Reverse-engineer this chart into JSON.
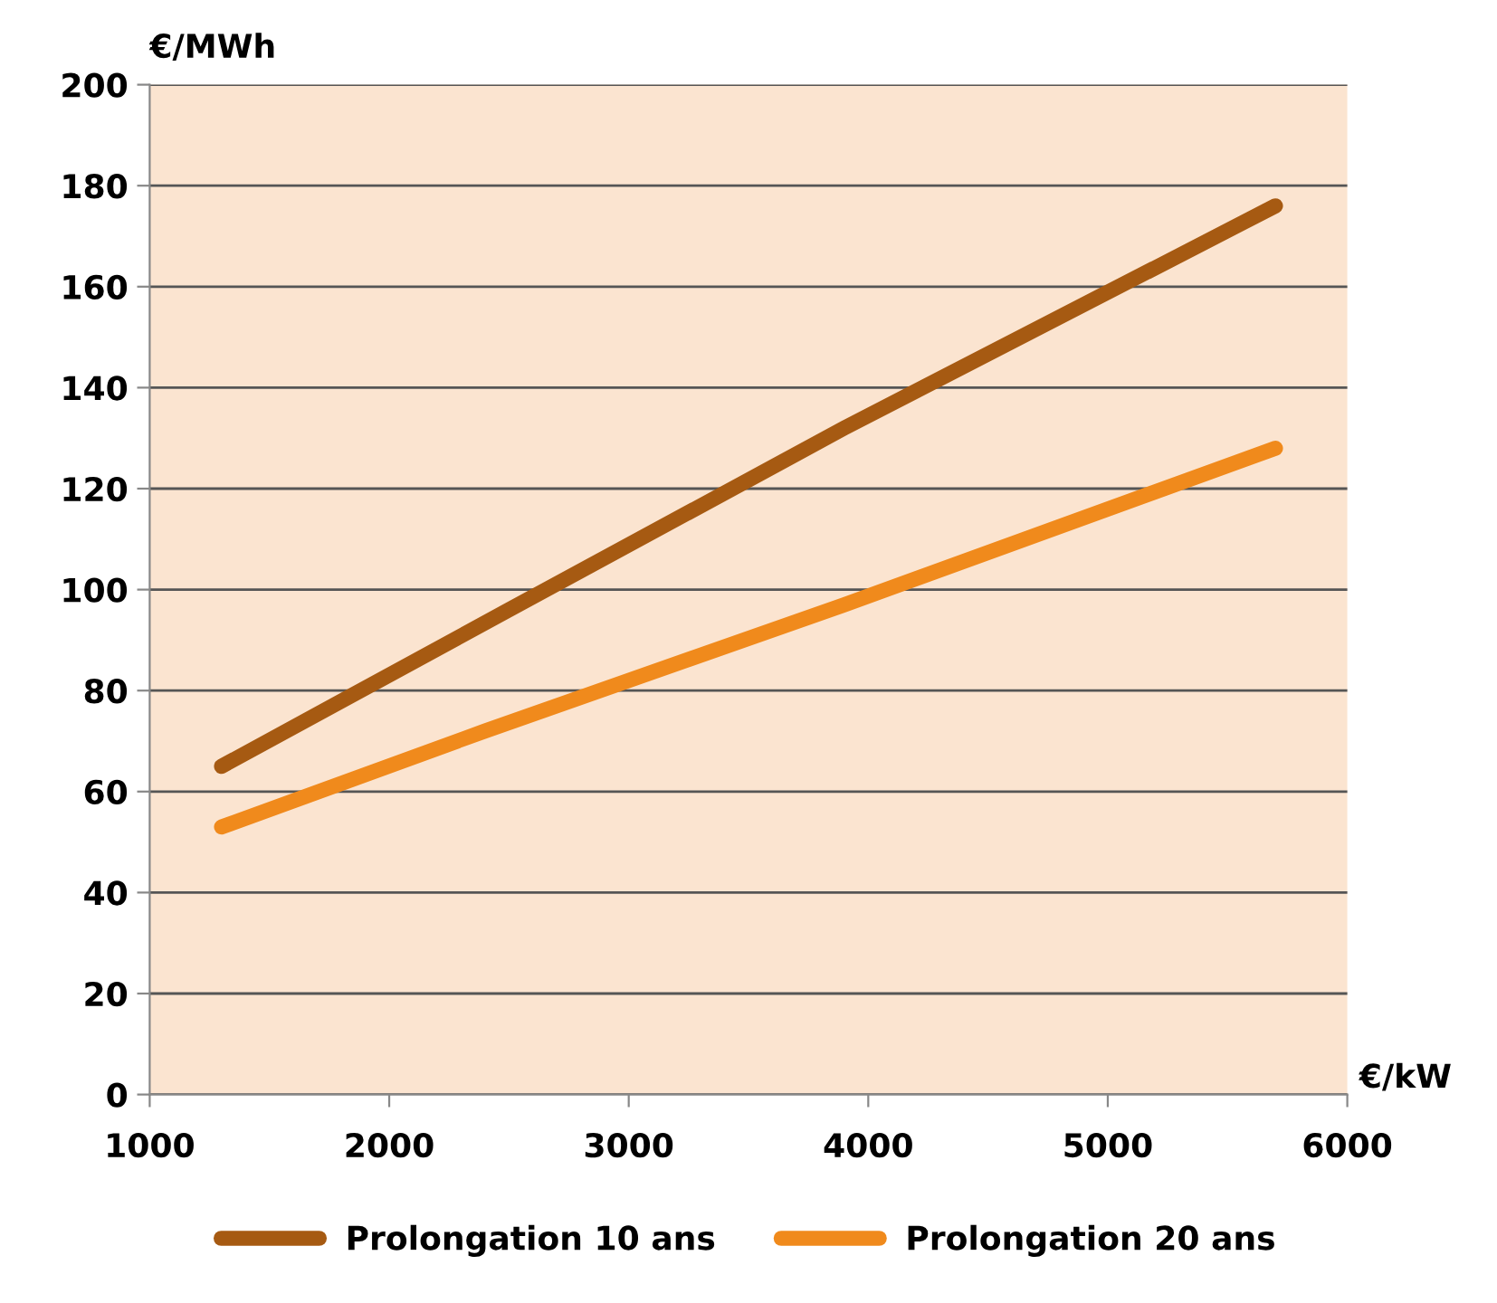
{
  "chart_data": {
    "type": "line",
    "xlabel": "€/kW",
    "ylabel": "€/MWh",
    "series": [
      {
        "name": "Prolongation 10 ans",
        "color": "#a65a12",
        "x": [
          1300,
          2500,
          3900,
          5700
        ],
        "values": [
          65,
          96,
          132,
          176
        ]
      },
      {
        "name": "Prolongation 20 ans",
        "color": "#f08a1c",
        "x": [
          1300,
          2400,
          3900,
          5700
        ],
        "values": [
          53,
          72,
          97,
          128
        ]
      }
    ],
    "xlim": [
      1000,
      6000
    ],
    "xticks": [
      1000,
      2000,
      3000,
      4000,
      5000,
      6000
    ],
    "ylim": [
      0,
      200
    ],
    "yticks": [
      0,
      20,
      40,
      60,
      80,
      100,
      120,
      140,
      160,
      180,
      200
    ],
    "grid": "y",
    "legend": "bottom",
    "marker": "none",
    "line_style": "solid"
  }
}
